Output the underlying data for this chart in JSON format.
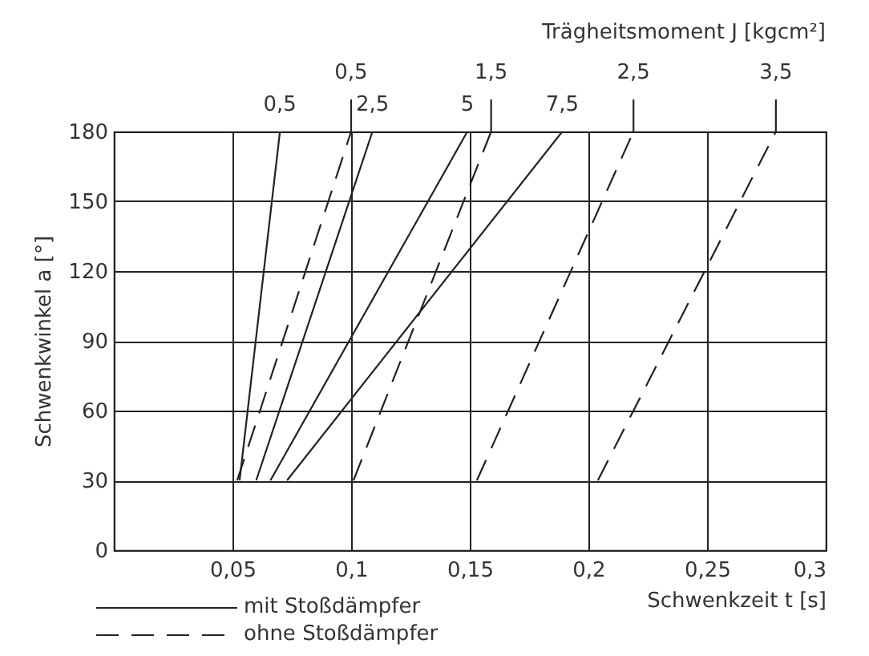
{
  "chart_data": {
    "type": "line",
    "title": "Trägheitsmoment J [kgcm²]",
    "xlabel": "Schwenkzeit t [s]",
    "ylabel": "Schwenkwinkel a [°]",
    "xlim": [
      0,
      0.3
    ],
    "xticks": [
      {
        "value": 0,
        "label": null
      },
      {
        "value": 0.05,
        "label": "0,05"
      },
      {
        "value": 0.1,
        "label": "0,1"
      },
      {
        "value": 0.15,
        "label": "0,15"
      },
      {
        "value": 0.2,
        "label": "0,2"
      },
      {
        "value": 0.25,
        "label": "0,25"
      },
      {
        "value": 0.3,
        "label": "0,3"
      }
    ],
    "ylim": [
      0,
      180
    ],
    "yticks": [
      0,
      30,
      60,
      90,
      120,
      150,
      180
    ],
    "grid": true,
    "series": [
      {
        "name": "0,5",
        "color": "#222222",
        "line_style": "solid",
        "x": [
          0.053,
          0.07
        ],
        "values": [
          30,
          180
        ]
      },
      {
        "name": "2,5",
        "color": "#222222",
        "line_style": "solid",
        "x": [
          0.06,
          0.109
        ],
        "values": [
          30,
          180
        ]
      },
      {
        "name": "5",
        "color": "#222222",
        "line_style": "solid",
        "x": [
          0.066,
          0.149
        ],
        "values": [
          30,
          180
        ]
      },
      {
        "name": "7,5",
        "color": "#222222",
        "line_style": "solid",
        "x": [
          0.073,
          0.189
        ],
        "values": [
          30,
          180
        ]
      },
      {
        "name": "0,5",
        "color": "#222222",
        "line_style": "dashed",
        "x": [
          0.052,
          0.1
        ],
        "values": [
          30,
          180
        ]
      },
      {
        "name": "1,5",
        "color": "#222222",
        "line_style": "dashed",
        "x": [
          0.101,
          0.159
        ],
        "values": [
          30,
          180
        ]
      },
      {
        "name": "2,5",
        "color": "#222222",
        "line_style": "dashed",
        "x": [
          0.153,
          0.219
        ],
        "values": [
          30,
          180
        ]
      },
      {
        "name": "3,5",
        "color": "#222222",
        "line_style": "dashed",
        "x": [
          0.204,
          0.279
        ],
        "values": [
          30,
          180
        ]
      }
    ],
    "annotations": [
      "mit Stoßdämpfer",
      "ohne Stoßdämpfer"
    ]
  }
}
